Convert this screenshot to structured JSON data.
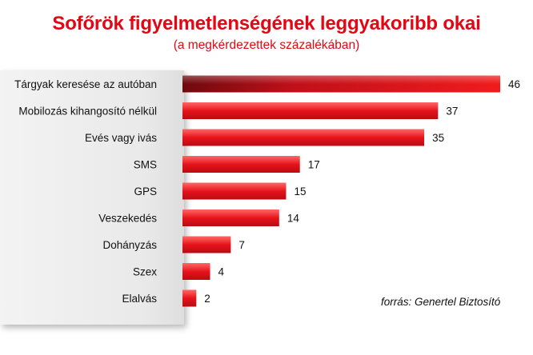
{
  "title": "Sofőrök figyelmetlenségének leggyakoribb okai",
  "subtitle": "(a megkérdezettek százalékában)",
  "source": "forrás: Genertel Biztosító",
  "colors": {
    "accent": "#e30613",
    "bar_dark": "#7a0a10",
    "bar_light": "#ff1a1a"
  },
  "chart_data": {
    "type": "bar",
    "orientation": "horizontal",
    "categories": [
      "Tárgyak keresése az autóban",
      "Mobilozás kihangosító nélkül",
      "Evés vagy ivás",
      "SMS",
      "GPS",
      "Veszekedés",
      "Dohányzás",
      "Szex",
      "Elalvás"
    ],
    "values": [
      46,
      37,
      35,
      17,
      15,
      14,
      7,
      4,
      2
    ],
    "title": "Sofőrök figyelmetlenségének leggyakoribb okai",
    "subtitle": "(a megkérdezettek százalékában)",
    "xlabel": "",
    "ylabel": "",
    "xlim": [
      0,
      46
    ],
    "grid": false,
    "legend": "none"
  }
}
